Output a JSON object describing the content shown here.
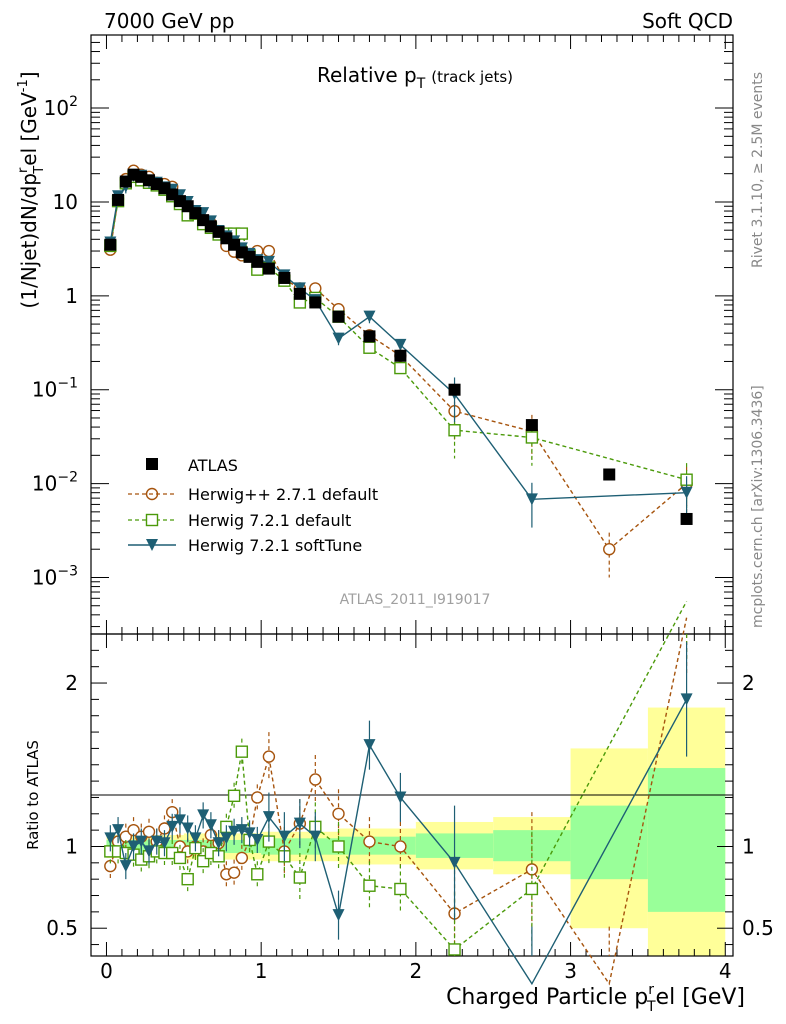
{
  "header": {
    "left": "7000 GeV pp",
    "right": "Soft QCD"
  },
  "side_labels": {
    "rivet": "Rivet 3.1.10, ≥ 2.5M events",
    "mcplots": "mcplots.cern.ch [arXiv:1306.3436]"
  },
  "chart_data": {
    "type": "scatter",
    "title": "Relative pT (track jets)",
    "title_main": "Relative p",
    "title_sub": "T",
    "title_note": "(track jets)",
    "analysis_id": "ATLAS_2011_I919017",
    "xlabel": "Charged Particle pʳɸel [GeV]",
    "xlabel_main": "Charged Particle p",
    "xlabel_sub": "T",
    "xlabel_sup": "r",
    "xlabel_rest": "el [GeV]",
    "ylabel": "(1/Njet)dN/dpʳₜel [GeV⁻¹]",
    "ylabel_main": "(1/Njet)dN/dp",
    "ylabel_sup": "r",
    "ylabel_sub": "T",
    "ylabel_rest": "el [GeV",
    "ylabel_exp": "-1",
    "ylabel_close": "]",
    "ratio_ylabel": "Ratio to ATLAS",
    "xlim": [
      -0.1,
      4.05
    ],
    "ylim": [
      0.00025,
      600
    ],
    "yscale": "log",
    "ratio_ylim": [
      0.33,
      2.3
    ],
    "x_ticks": [
      "0",
      "1",
      "2",
      "3",
      "4"
    ],
    "x_tick_values": [
      0,
      1,
      2,
      3,
      4
    ],
    "y_ticks": [
      "10⁻³",
      "10⁻²",
      "10⁻¹",
      "1",
      "10",
      "10²"
    ],
    "y_tick_values": [
      0.001,
      0.01,
      0.1,
      1,
      10,
      100
    ],
    "ratio_ticks": [
      "0.5",
      "1",
      "2"
    ],
    "ratio_tick_values": [
      0.5,
      1,
      2
    ],
    "legend_position": "bottom-left",
    "legend": [
      "ATLAS",
      "Herwig++ 2.7.1 default",
      "Herwig 7.2.1 default",
      "Herwig 7.2.1 softTune"
    ],
    "series": [
      {
        "name": "ATLAS",
        "color": "#000000",
        "marker": "square",
        "x": [
          0.025,
          0.075,
          0.125,
          0.175,
          0.225,
          0.275,
          0.325,
          0.375,
          0.425,
          0.475,
          0.525,
          0.575,
          0.625,
          0.675,
          0.725,
          0.775,
          0.825,
          0.875,
          0.925,
          0.975,
          1.05,
          1.15,
          1.25,
          1.35,
          1.5,
          1.7,
          1.9,
          2.25,
          2.75,
          3.25,
          3.75
        ],
        "y": [
          3.5,
          10.5,
          16.5,
          19.5,
          18.5,
          17.0,
          15.5,
          14.0,
          12.0,
          10.2,
          9.0,
          7.6,
          6.4,
          5.5,
          4.8,
          4.1,
          3.5,
          2.9,
          2.6,
          2.3,
          1.95,
          1.55,
          1.05,
          0.85,
          0.6,
          0.37,
          0.23,
          0.1,
          0.042,
          0.0125,
          0.0042
        ]
      },
      {
        "name": "Herwig++ 2.7.1 default",
        "color": "#a6540e",
        "marker": "circle",
        "x": [
          0.025,
          0.075,
          0.125,
          0.175,
          0.225,
          0.275,
          0.325,
          0.375,
          0.425,
          0.475,
          0.525,
          0.575,
          0.625,
          0.675,
          0.725,
          0.775,
          0.825,
          0.875,
          0.925,
          0.975,
          1.05,
          1.15,
          1.25,
          1.35,
          1.5,
          1.7,
          1.9,
          2.25,
          2.75,
          3.25,
          3.75
        ],
        "y": [
          3.1,
          10.8,
          17.5,
          21.5,
          19.5,
          18.5,
          16.0,
          15.5,
          14.5,
          10.2,
          8.7,
          7.6,
          6.2,
          5.9,
          4.9,
          3.4,
          2.95,
          2.7,
          2.7,
          3.0,
          3.0,
          1.5,
          1.2,
          1.2,
          0.72,
          0.38,
          0.23,
          0.059,
          0.036,
          0.002,
          0.01
        ],
        "ratio": [
          0.88,
          1.03,
          1.06,
          1.1,
          1.06,
          1.09,
          1.03,
          1.11,
          1.21,
          1.0,
          0.97,
          1.0,
          0.97,
          1.07,
          1.02,
          0.83,
          0.84,
          0.93,
          1.04,
          1.3,
          1.55,
          0.97,
          1.14,
          1.41,
          1.2,
          1.03,
          1.0,
          0.59,
          0.86,
          0.16,
          2.4
        ]
      },
      {
        "name": "Herwig 7.2.1 default",
        "color": "#4b9a0a",
        "marker": "open-square",
        "x": [
          0.025,
          0.075,
          0.125,
          0.175,
          0.225,
          0.275,
          0.325,
          0.375,
          0.425,
          0.475,
          0.525,
          0.575,
          0.625,
          0.675,
          0.725,
          0.775,
          0.825,
          0.875,
          0.925,
          0.975,
          1.05,
          1.15,
          1.25,
          1.35,
          1.5,
          1.7,
          1.9,
          2.25,
          2.75,
          3.75
        ],
        "y": [
          3.4,
          10.2,
          15.8,
          18.5,
          17.0,
          16.0,
          15.0,
          13.5,
          11.5,
          9.5,
          7.2,
          7.5,
          5.8,
          5.3,
          4.5,
          4.6,
          4.6,
          4.6,
          2.7,
          1.9,
          2.0,
          1.45,
          0.85,
          0.95,
          0.6,
          0.28,
          0.17,
          0.037,
          0.031,
          0.011
        ],
        "ratio": [
          0.97,
          0.97,
          0.96,
          0.95,
          0.92,
          0.94,
          0.97,
          0.96,
          0.96,
          0.93,
          0.8,
          0.99,
          0.91,
          0.96,
          0.94,
          1.12,
          1.31,
          1.58,
          1.04,
          0.83,
          1.03,
          0.94,
          0.81,
          1.12,
          1.0,
          0.76,
          0.74,
          0.37,
          0.74,
          2.5
        ]
      },
      {
        "name": "Herwig 7.2.1 softTune",
        "color": "#1e5f74",
        "marker": "triangle-down",
        "x": [
          0.025,
          0.075,
          0.125,
          0.175,
          0.225,
          0.275,
          0.325,
          0.375,
          0.425,
          0.475,
          0.525,
          0.575,
          0.625,
          0.675,
          0.725,
          0.775,
          0.825,
          0.875,
          0.925,
          0.975,
          1.05,
          1.15,
          1.25,
          1.35,
          1.5,
          1.7,
          1.9,
          2.25,
          2.75,
          3.75
        ],
        "y": [
          3.7,
          11.5,
          14.5,
          19.5,
          19.0,
          16.5,
          16.0,
          14.3,
          13.5,
          11.8,
          10.0,
          8.0,
          7.6,
          6.2,
          4.9,
          4.3,
          3.8,
          3.2,
          2.8,
          2.4,
          2.3,
          1.65,
          1.2,
          0.9,
          0.35,
          0.6,
          0.3,
          0.09,
          0.0068,
          0.008
        ],
        "ratio": [
          1.05,
          1.1,
          0.88,
          1.0,
          1.03,
          0.97,
          1.03,
          1.02,
          1.12,
          1.16,
          1.11,
          1.05,
          1.19,
          1.13,
          1.02,
          1.05,
          1.09,
          1.1,
          1.08,
          1.04,
          1.18,
          1.06,
          1.14,
          1.06,
          0.58,
          1.62,
          1.3,
          0.9,
          0.16,
          1.9
        ]
      }
    ],
    "bands": {
      "x_edges": [
        0.0,
        0.5,
        1.0,
        1.5,
        2.0,
        2.5,
        3.0,
        3.5,
        4.0
      ],
      "inner": [
        [
          0.96,
          1.04
        ],
        [
          0.96,
          1.04
        ],
        [
          0.95,
          1.05
        ],
        [
          0.95,
          1.06
        ],
        [
          0.93,
          1.08
        ],
        [
          0.91,
          1.1
        ],
        [
          0.8,
          1.25
        ],
        [
          0.6,
          1.48
        ]
      ],
      "outer": [
        [
          0.93,
          1.07
        ],
        [
          0.92,
          1.08
        ],
        [
          0.91,
          1.09
        ],
        [
          0.89,
          1.11
        ],
        [
          0.86,
          1.15
        ],
        [
          0.83,
          1.18
        ],
        [
          0.5,
          1.6
        ],
        [
          0.3,
          1.85
        ]
      ]
    }
  }
}
